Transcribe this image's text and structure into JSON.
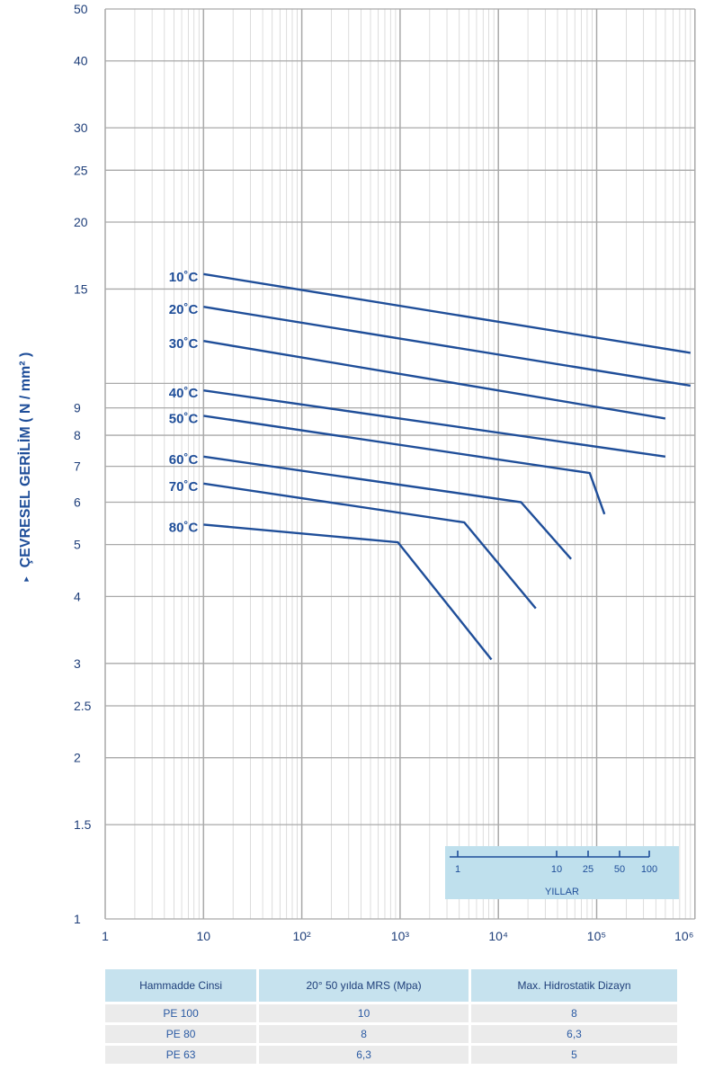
{
  "chart_data": {
    "type": "line",
    "title": "",
    "ylabel": "ÇEVRESEL GERİLİM ( N / mm² )",
    "xlabel": "",
    "x_scale": "log",
    "y_scale": "log",
    "xlim": [
      1,
      1000000
    ],
    "ylim": [
      1,
      50
    ],
    "x_tick_labels": [
      "1",
      "10",
      "10²",
      "10³",
      "10⁴",
      "10⁵",
      "10⁶"
    ],
    "y_ticks": [
      1,
      1.5,
      2,
      2.5,
      3,
      4,
      5,
      6,
      7,
      8,
      9,
      15,
      20,
      25,
      30,
      40,
      50
    ],
    "y_tick_labels": [
      "1",
      "1.5",
      "2",
      "2.5",
      "3",
      "4",
      "5",
      "6",
      "7",
      "8",
      "9",
      "15",
      "20",
      "25",
      "30",
      "40",
      "50"
    ],
    "series": [
      {
        "name": "10˚C",
        "points": [
          [
            10,
            16.0
          ],
          [
            900000,
            11.4
          ]
        ]
      },
      {
        "name": "20˚C",
        "points": [
          [
            10,
            13.9
          ],
          [
            900000,
            9.9
          ]
        ]
      },
      {
        "name": "30˚C",
        "points": [
          [
            10,
            12.0
          ],
          [
            500000,
            8.6
          ]
        ]
      },
      {
        "name": "40˚C",
        "points": [
          [
            10,
            9.7
          ],
          [
            500000,
            7.3
          ]
        ]
      },
      {
        "name": "50˚C",
        "points": [
          [
            10,
            8.7
          ],
          [
            85000,
            6.8
          ],
          [
            120000,
            5.7
          ]
        ]
      },
      {
        "name": "60˚C",
        "points": [
          [
            10,
            7.3
          ],
          [
            17000,
            6.0
          ],
          [
            55000,
            4.7
          ]
        ]
      },
      {
        "name": "70˚C",
        "points": [
          [
            10,
            6.5
          ],
          [
            4500,
            5.5
          ],
          [
            24000,
            3.8
          ]
        ]
      },
      {
        "name": "80˚C",
        "points": [
          [
            10,
            5.45
          ],
          [
            950,
            5.05
          ],
          [
            8500,
            3.05
          ]
        ]
      }
    ],
    "grid": true,
    "line_color": "#1f4e99",
    "years_scale": {
      "ticks": [
        "1",
        "10",
        "25",
        "50",
        "100"
      ],
      "label": "YILLAR",
      "color": "#1f4e99",
      "background": "#bfe0ed"
    }
  },
  "table": {
    "headers": [
      "Hammadde Cinsi",
      "20° 50 yılda MRS (Mpa)",
      "Max. Hidrostatik Dizayn"
    ],
    "rows": [
      [
        "PE 100",
        "10",
        "8"
      ],
      [
        "PE 80",
        "8",
        "6,3"
      ],
      [
        "PE 63",
        "6,3",
        "5"
      ]
    ]
  }
}
